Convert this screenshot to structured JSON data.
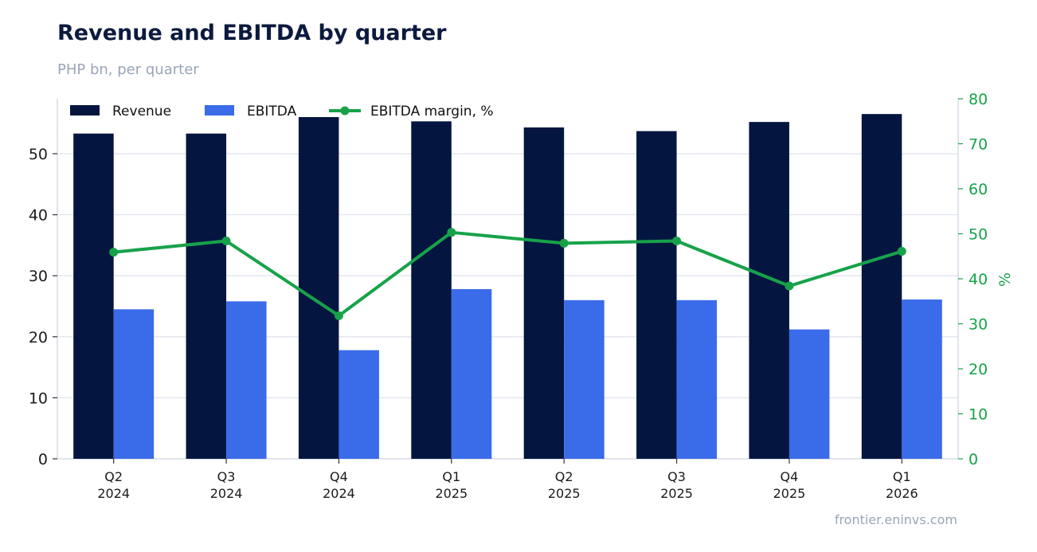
{
  "header": {
    "title": "Revenue and EBITDA by quarter",
    "subtitle": "PHP bn, per quarter"
  },
  "footer": {
    "source": "frontier.eninvs.com"
  },
  "colors": {
    "revenue": "#04163f",
    "ebitda": "#3a6be8",
    "margin": "#17a24a",
    "grid": "#e3e7ef",
    "axis": "#d6dbe6"
  },
  "chart_data": {
    "type": "bar",
    "categories": [
      [
        "Q2",
        "2024"
      ],
      [
        "Q3",
        "2024"
      ],
      [
        "Q4",
        "2024"
      ],
      [
        "Q1",
        "2025"
      ],
      [
        "Q2",
        "2025"
      ],
      [
        "Q3",
        "2025"
      ],
      [
        "Q4",
        "2025"
      ],
      [
        "Q1",
        "2026"
      ]
    ],
    "series": [
      {
        "name": "Revenue",
        "kind": "bar",
        "axis": "left",
        "values": [
          53.3,
          53.3,
          56.0,
          55.3,
          54.3,
          53.7,
          55.2,
          56.5
        ]
      },
      {
        "name": "EBITDA",
        "kind": "bar",
        "axis": "left",
        "values": [
          24.5,
          25.8,
          17.8,
          27.8,
          26.0,
          26.0,
          21.2,
          26.1
        ]
      },
      {
        "name": "EBITDA margin, %",
        "kind": "line",
        "axis": "right",
        "values": [
          45.9,
          48.4,
          31.8,
          50.3,
          47.9,
          48.4,
          38.4,
          46.1
        ]
      }
    ],
    "ylim": [
      0,
      59
    ],
    "yticks": [
      0,
      10,
      20,
      30,
      40,
      50
    ],
    "y2lim": [
      0,
      80
    ],
    "y2ticks": [
      0,
      10,
      20,
      30,
      40,
      50,
      60,
      70,
      80
    ],
    "y2label": "%",
    "grid": true,
    "legend": "top-left"
  }
}
